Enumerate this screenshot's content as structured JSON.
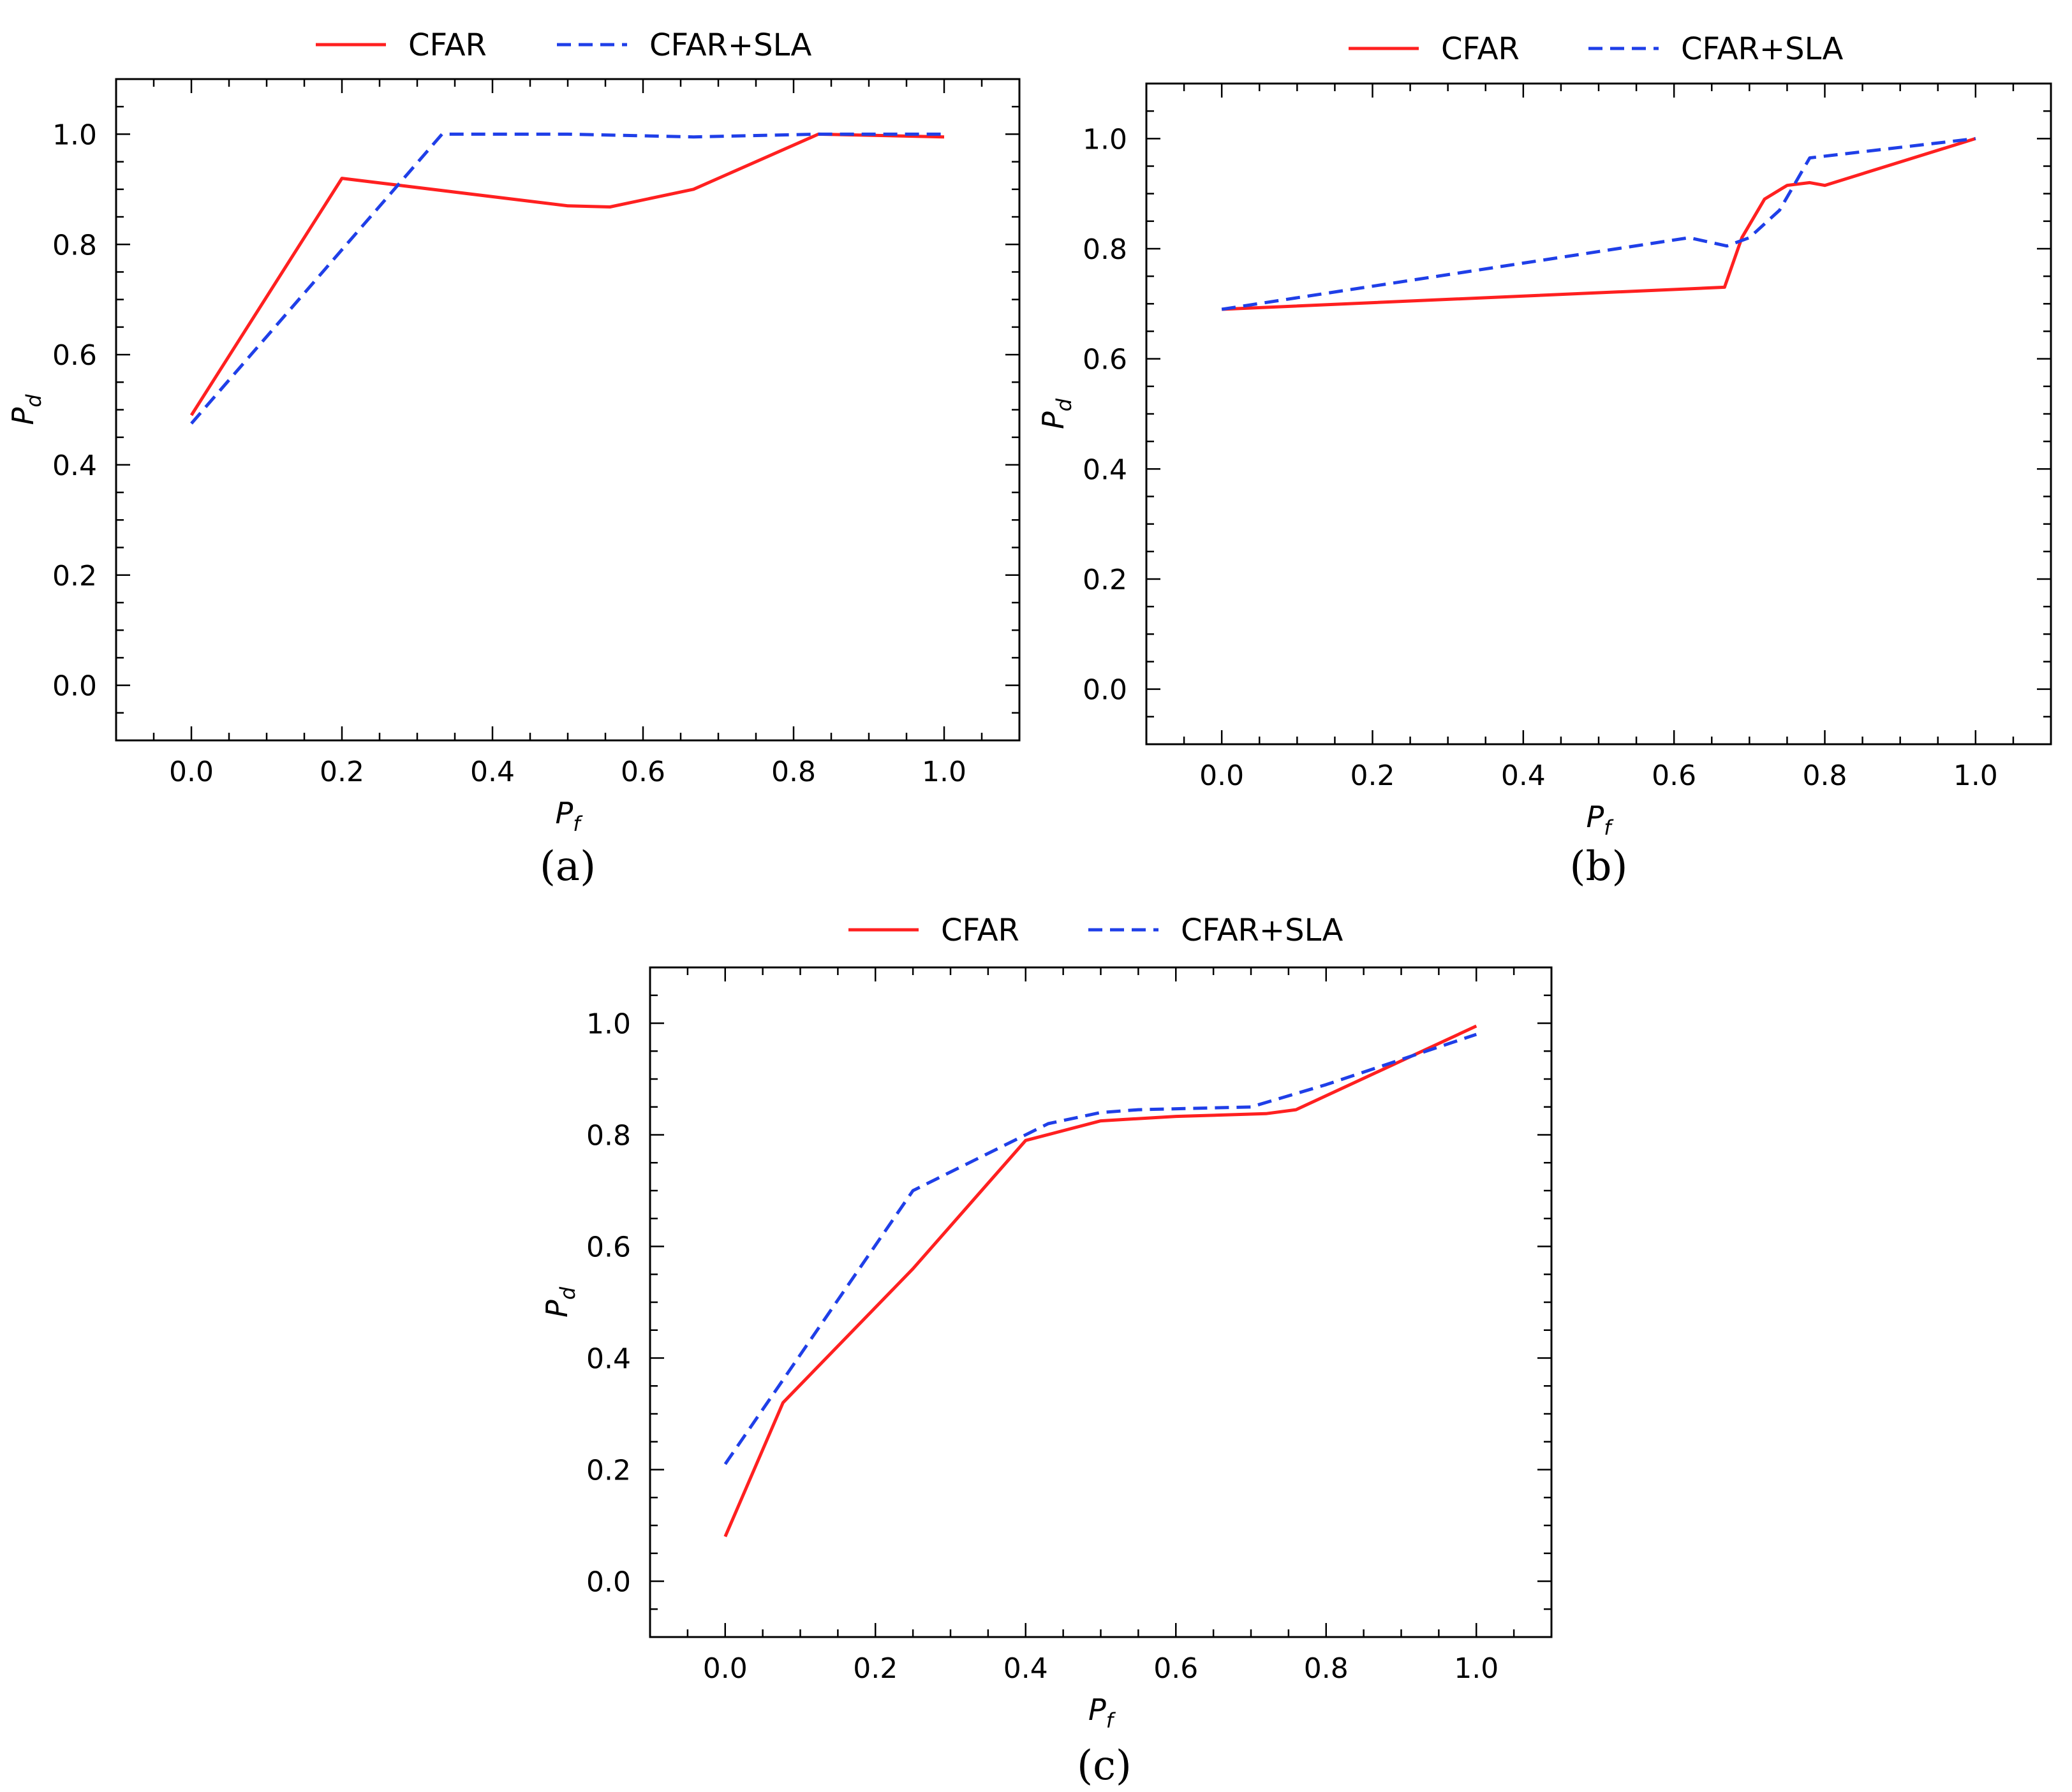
{
  "colors": {
    "cfar": "#ff2020",
    "cfar_sla": "#1f3fe8",
    "axis": "#000000"
  },
  "chart_data": [
    {
      "panel": "a",
      "caption": "(a)",
      "type": "line",
      "xlabel_base": "P",
      "xlabel_sub": "f",
      "ylabel_base": "P",
      "ylabel_sub": "d",
      "xlim": [
        -0.1,
        1.1
      ],
      "ylim": [
        -0.1,
        1.1
      ],
      "xticks": [
        0.0,
        0.2,
        0.4,
        0.6,
        0.8,
        1.0
      ],
      "yticks": [
        0.0,
        0.2,
        0.4,
        0.6,
        0.8,
        1.0
      ],
      "xtick_labels": [
        "0.0",
        "0.2",
        "0.4",
        "0.6",
        "0.8",
        "1.0"
      ],
      "ytick_labels": [
        "0.0",
        "0.2",
        "0.4",
        "0.6",
        "0.8",
        "1.0"
      ],
      "legend": [
        "CFAR",
        "CFAR+SLA"
      ],
      "series": [
        {
          "name": "CFAR",
          "style": "solid",
          "x": [
            0.0,
            0.2,
            0.5,
            0.556,
            0.667,
            0.833,
            1.0
          ],
          "y": [
            0.49,
            0.92,
            0.87,
            0.868,
            0.9,
            1.0,
            0.995
          ]
        },
        {
          "name": "CFAR+SLA",
          "style": "dashed",
          "x": [
            0.0,
            0.333,
            0.5,
            0.667,
            0.833,
            1.0
          ],
          "y": [
            0.475,
            1.0,
            1.0,
            0.995,
            1.0,
            1.0
          ]
        }
      ]
    },
    {
      "panel": "b",
      "caption": "(b)",
      "type": "line",
      "xlabel_base": "P",
      "xlabel_sub": "f",
      "ylabel_base": "P",
      "ylabel_sub": "d",
      "xlim": [
        -0.1,
        1.1
      ],
      "ylim": [
        -0.1,
        1.1
      ],
      "xticks": [
        0.0,
        0.2,
        0.4,
        0.6,
        0.8,
        1.0
      ],
      "yticks": [
        0.0,
        0.2,
        0.4,
        0.6,
        0.8,
        1.0
      ],
      "xtick_labels": [
        "0.0",
        "0.2",
        "0.4",
        "0.6",
        "0.8",
        "1.0"
      ],
      "ytick_labels": [
        "0.0",
        "0.2",
        "0.4",
        "0.6",
        "0.8",
        "1.0"
      ],
      "legend": [
        "CFAR",
        "CFAR+SLA"
      ],
      "series": [
        {
          "name": "CFAR",
          "style": "solid",
          "x": [
            0.0,
            0.667,
            0.69,
            0.72,
            0.75,
            0.78,
            0.8,
            1.0
          ],
          "y": [
            0.69,
            0.73,
            0.82,
            0.89,
            0.915,
            0.92,
            0.915,
            1.0
          ]
        },
        {
          "name": "CFAR+SLA",
          "style": "dashed",
          "x": [
            0.0,
            0.62,
            0.67,
            0.7,
            0.74,
            0.78,
            1.0
          ],
          "y": [
            0.69,
            0.82,
            0.805,
            0.82,
            0.87,
            0.965,
            1.0
          ]
        }
      ]
    },
    {
      "panel": "c",
      "caption": "(c)",
      "type": "line",
      "xlabel_base": "P",
      "xlabel_sub": "f",
      "ylabel_base": "P",
      "ylabel_sub": "d",
      "xlim": [
        -0.1,
        1.1
      ],
      "ylim": [
        -0.1,
        1.1
      ],
      "xticks": [
        0.0,
        0.2,
        0.4,
        0.6,
        0.8,
        1.0
      ],
      "yticks": [
        0.0,
        0.2,
        0.4,
        0.6,
        0.8,
        1.0
      ],
      "xtick_labels": [
        "0.0",
        "0.2",
        "0.4",
        "0.6",
        "0.8",
        "1.0"
      ],
      "ytick_labels": [
        "0.0",
        "0.2",
        "0.4",
        "0.6",
        "0.8",
        "1.0"
      ],
      "legend": [
        "CFAR",
        "CFAR+SLA"
      ],
      "series": [
        {
          "name": "CFAR",
          "style": "solid",
          "x": [
            0.0,
            0.077,
            0.25,
            0.4,
            0.5,
            0.6,
            0.72,
            0.76,
            1.0
          ],
          "y": [
            0.08,
            0.32,
            0.56,
            0.79,
            0.825,
            0.833,
            0.838,
            0.845,
            0.995
          ]
        },
        {
          "name": "CFAR+SLA",
          "style": "dashed",
          "x": [
            0.0,
            0.25,
            0.43,
            0.5,
            0.55,
            0.7,
            0.8,
            1.0
          ],
          "y": [
            0.21,
            0.7,
            0.82,
            0.84,
            0.845,
            0.85,
            0.89,
            0.98
          ]
        }
      ]
    }
  ]
}
